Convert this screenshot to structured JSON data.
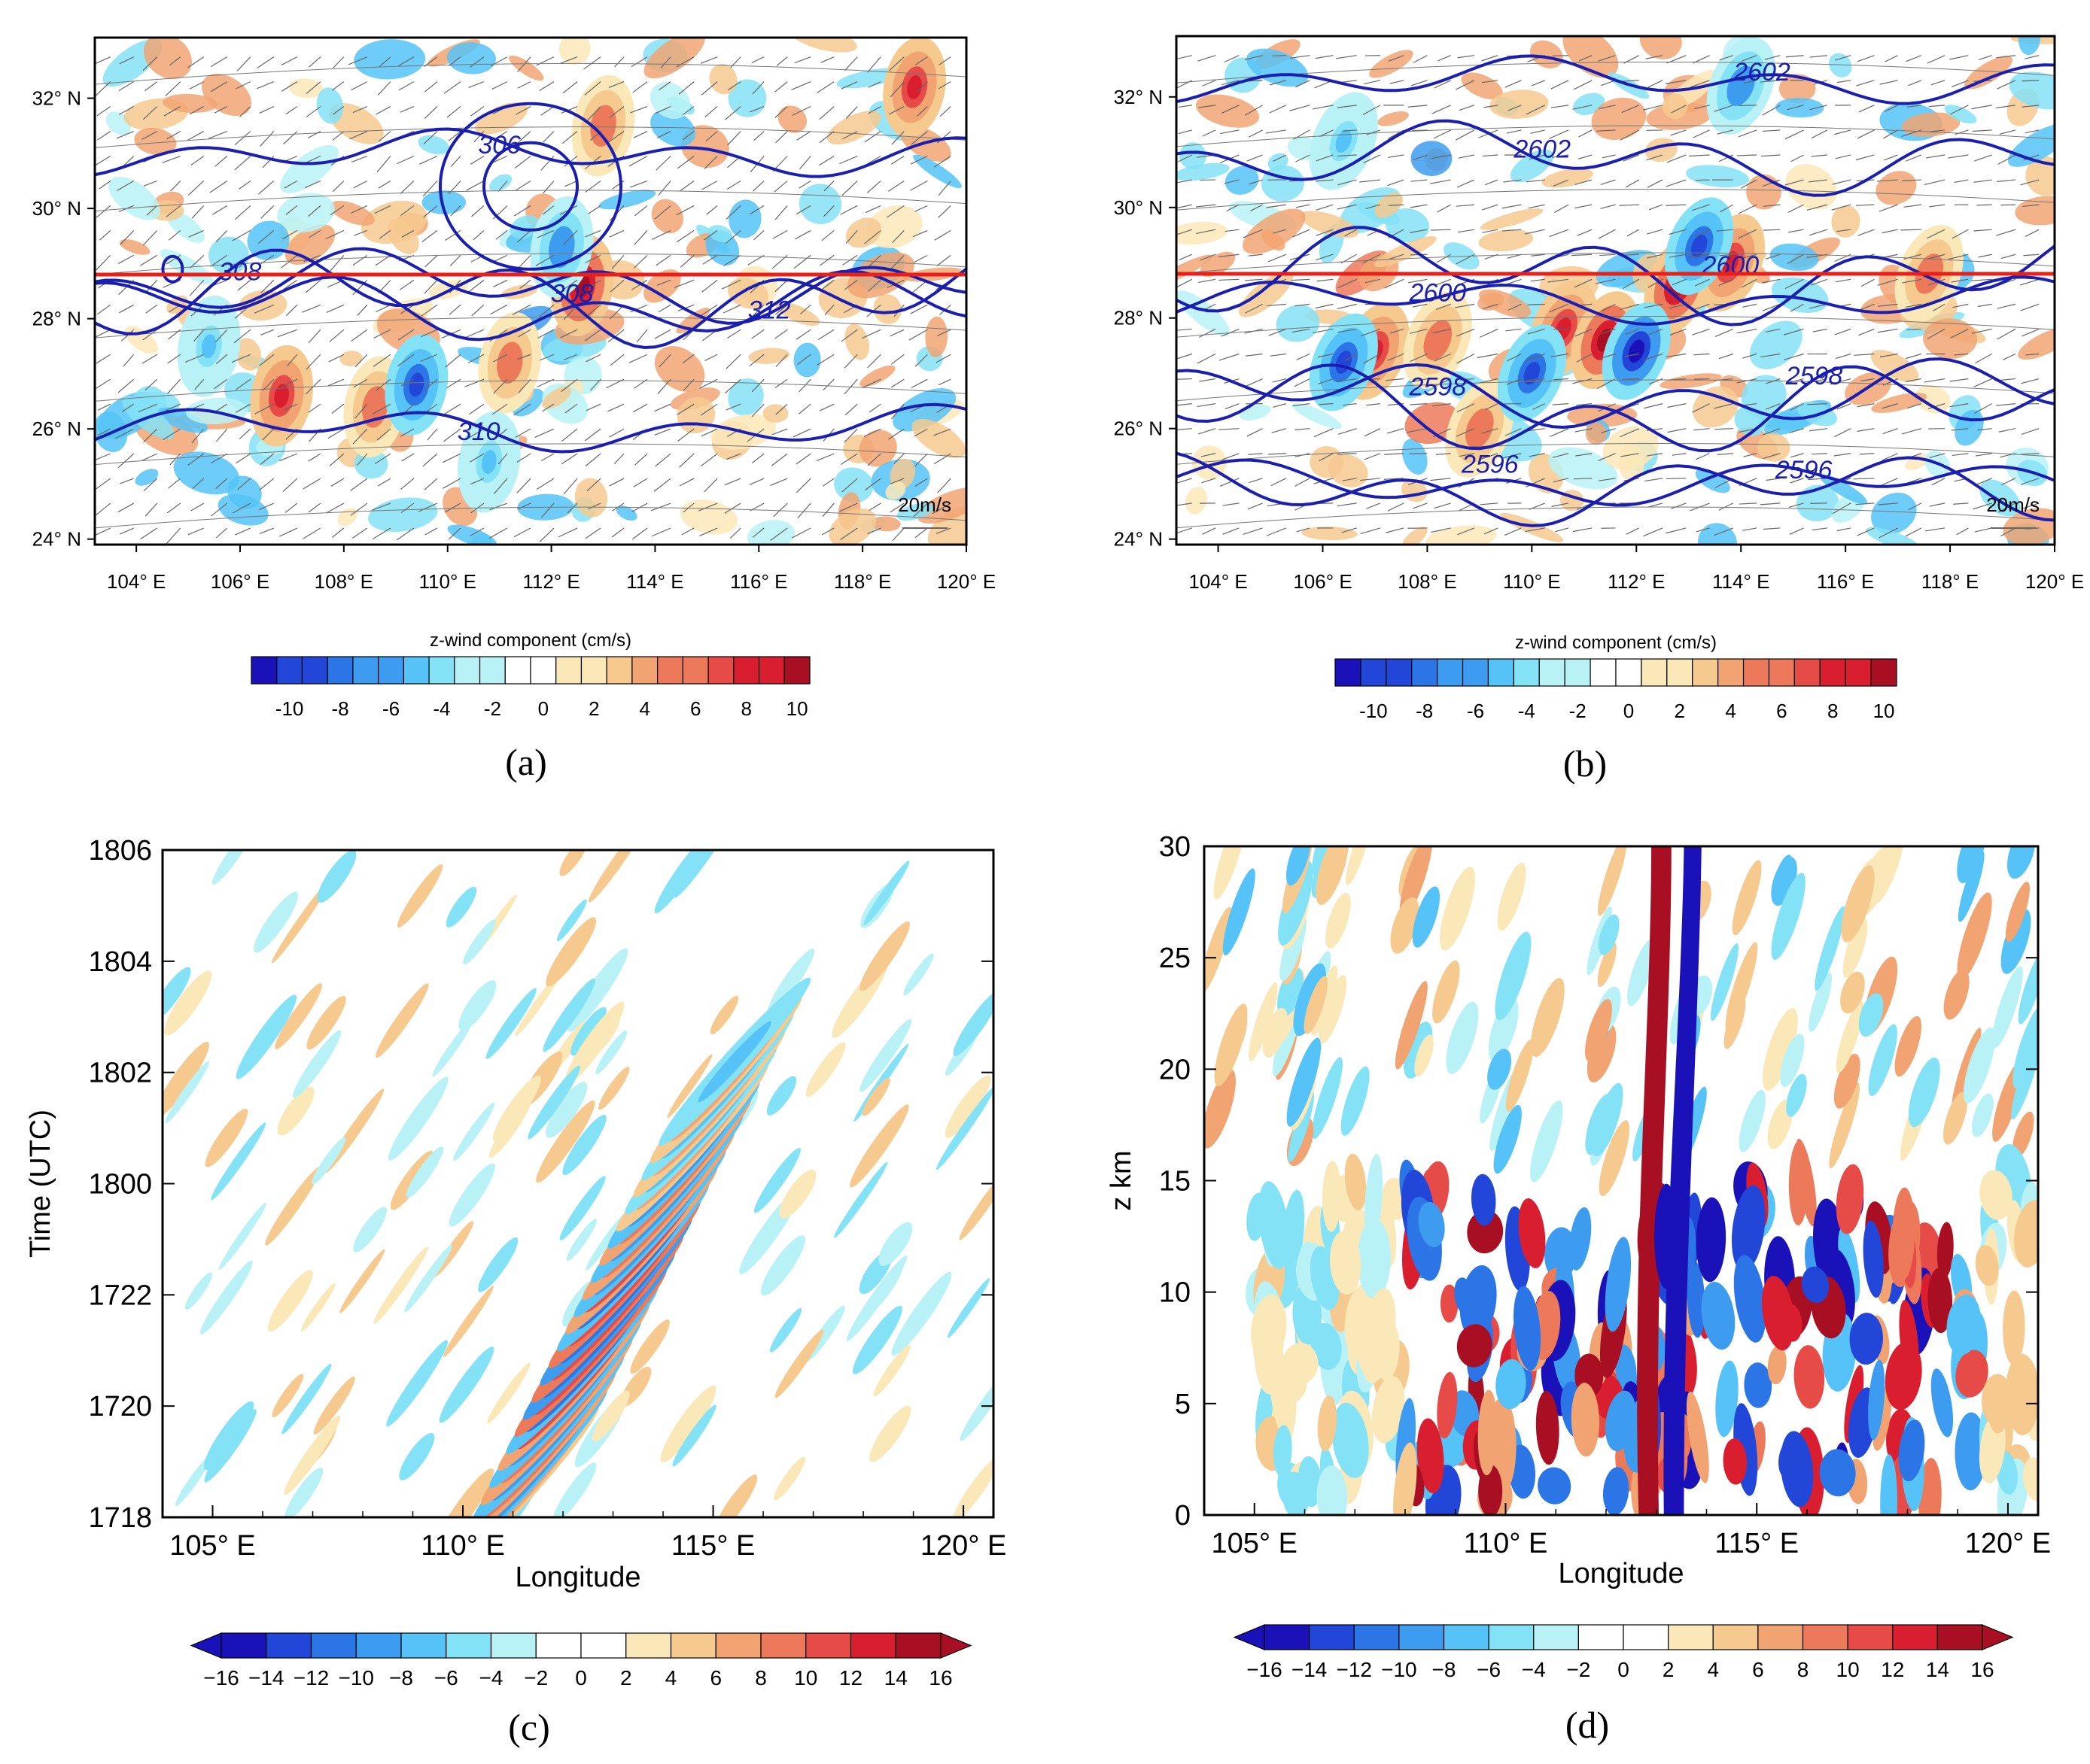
{
  "chart_data": [
    {
      "id": "a",
      "type": "heatmap",
      "subtype": "map-with-contours-and-wind-vectors",
      "label": "(a)",
      "x_ticks": [
        "104° E",
        "106° E",
        "108° E",
        "110° E",
        "112° E",
        "114° E",
        "116° E",
        "118° E",
        "120° E"
      ],
      "y_ticks": [
        "24° N",
        "26° N",
        "28° N",
        "30° N",
        "32° N"
      ],
      "xlim": [
        103.2,
        120.0
      ],
      "ylim": [
        23.9,
        33.1
      ],
      "cross_section_lat": 28.8,
      "contours": [
        {
          "label": "306",
          "lat": 31.0
        },
        {
          "label": "308",
          "lat": 28.6
        },
        {
          "label": "308",
          "lat": 28.4
        },
        {
          "label": "310",
          "lat": 26.0
        },
        {
          "label": "312",
          "lat": 28.2
        }
      ],
      "anomalies": [
        {
          "lon": 106.8,
          "lat": 26.6,
          "value": 8
        },
        {
          "lon": 108.6,
          "lat": 26.4,
          "value": 6
        },
        {
          "lon": 112.6,
          "lat": 28.6,
          "value": 10
        },
        {
          "lon": 113.0,
          "lat": 31.5,
          "value": 6
        },
        {
          "lon": 119.0,
          "lat": 32.2,
          "value": 8
        },
        {
          "lon": 111.2,
          "lat": 27.2,
          "value": 6
        },
        {
          "lon": 109.4,
          "lat": 26.8,
          "value": -8
        },
        {
          "lon": 112.2,
          "lat": 29.3,
          "value": -6
        },
        {
          "lon": 110.8,
          "lat": 25.4,
          "value": -4
        },
        {
          "lon": 105.4,
          "lat": 27.5,
          "value": -4
        }
      ],
      "vector_ref": "20m/s",
      "colorbar_label": "z-wind component  (cm/s)",
      "colorbar_ticks": [
        "-10",
        "-8",
        "-6",
        "-4",
        "-2",
        "0",
        "2",
        "4",
        "6",
        "8",
        "10"
      ]
    },
    {
      "id": "b",
      "type": "heatmap",
      "subtype": "map-with-contours-and-wind-vectors",
      "label": "(b)",
      "x_ticks": [
        "104° E",
        "106° E",
        "108° E",
        "110° E",
        "112° E",
        "114° E",
        "116° E",
        "118° E",
        "120° E"
      ],
      "y_ticks": [
        "24° N",
        "26° N",
        "28° N",
        "30° N",
        "32° N"
      ],
      "xlim": [
        103.2,
        120.0
      ],
      "ylim": [
        23.9,
        33.1
      ],
      "cross_section_lat": 28.8,
      "contours": [
        {
          "label": "2602",
          "lat": 32.3
        },
        {
          "label": "2602",
          "lat": 30.9
        },
        {
          "label": "2600",
          "lat": 28.8
        },
        {
          "label": "2600",
          "lat": 28.3
        },
        {
          "label": "2598",
          "lat": 26.6
        },
        {
          "label": "2598",
          "lat": 26.3
        },
        {
          "label": "2596",
          "lat": 25.0
        },
        {
          "label": "2596",
          "lat": 24.9
        }
      ],
      "anomalies": [
        {
          "lon": 107.0,
          "lat": 27.4,
          "value": 8
        },
        {
          "lon": 108.2,
          "lat": 27.6,
          "value": 6
        },
        {
          "lon": 110.6,
          "lat": 27.8,
          "value": 8
        },
        {
          "lon": 111.4,
          "lat": 27.6,
          "value": 10
        },
        {
          "lon": 112.8,
          "lat": 28.6,
          "value": 10
        },
        {
          "lon": 113.8,
          "lat": 29.0,
          "value": 8
        },
        {
          "lon": 117.6,
          "lat": 28.8,
          "value": 6
        },
        {
          "lon": 109.0,
          "lat": 26.0,
          "value": 6
        },
        {
          "lon": 106.4,
          "lat": 27.2,
          "value": -8
        },
        {
          "lon": 110.0,
          "lat": 27.0,
          "value": -8
        },
        {
          "lon": 112.0,
          "lat": 27.4,
          "value": -10
        },
        {
          "lon": 113.2,
          "lat": 29.3,
          "value": -8
        },
        {
          "lon": 114.0,
          "lat": 32.2,
          "value": -6
        },
        {
          "lon": 106.4,
          "lat": 31.2,
          "value": -4
        }
      ],
      "vector_ref": "20m/s",
      "colorbar_label": "z-wind component  (cm/s)",
      "colorbar_ticks": [
        "-10",
        "-8",
        "-6",
        "-4",
        "-2",
        "0",
        "2",
        "4",
        "6",
        "8",
        "10"
      ]
    },
    {
      "id": "c",
      "type": "heatmap",
      "subtype": "hovmoller",
      "label": "(c)",
      "xlabel": "Longitude",
      "ylabel": "Time  (UTC)",
      "x_ticks": [
        "105° E",
        "110° E",
        "115° E",
        "120° E"
      ],
      "y_ticks": [
        "1718",
        "1720",
        "1722",
        "1800",
        "1802",
        "1804",
        "1806"
      ],
      "xlim": [
        104.0,
        120.6
      ],
      "ylim": [
        0,
        12
      ],
      "band": {
        "lon_start": 111.2,
        "lon_end": 115.6,
        "t_start": 0.5,
        "t_end": 8.5,
        "max_value": 16
      },
      "colorbar_ticks": [
        "−16",
        "−14",
        "−12",
        "−10",
        "−8",
        "−6",
        "−4",
        "−2",
        "0",
        "2",
        "4",
        "6",
        "8",
        "10",
        "12",
        "14",
        "16"
      ]
    },
    {
      "id": "d",
      "type": "heatmap",
      "subtype": "longitude-height-section",
      "label": "(d)",
      "xlabel": "Longitude",
      "ylabel": "z  km",
      "x_ticks": [
        "105° E",
        "110° E",
        "115° E",
        "120° E"
      ],
      "y_ticks": [
        "0",
        "5",
        "10",
        "15",
        "20",
        "25",
        "30"
      ],
      "xlim": [
        104.0,
        120.6
      ],
      "ylim": [
        0,
        30
      ],
      "plume": {
        "lon": 113.0,
        "z_top": 30,
        "max_value": 16
      },
      "active_layer_top_km": 16,
      "colorbar_ticks": [
        "−16",
        "−14",
        "−12",
        "−10",
        "−8",
        "−6",
        "−4",
        "−2",
        "0",
        "2",
        "4",
        "6",
        "8",
        "10",
        "12",
        "14",
        "16"
      ]
    }
  ],
  "colors": {
    "negative": [
      "#1a12b8",
      "#2146d8",
      "#2b75e6",
      "#3d9cf0",
      "#55c3f7",
      "#84e2f7",
      "#b8f2f6"
    ],
    "zero": "#ffffff",
    "positive": [
      "#fbe8b8",
      "#f6c98f",
      "#f1a472",
      "#ec7a5a",
      "#e64b47",
      "#d91f2f",
      "#a80f23"
    ],
    "contour": "#1b1fb0",
    "cross_section": "#e8201c"
  }
}
